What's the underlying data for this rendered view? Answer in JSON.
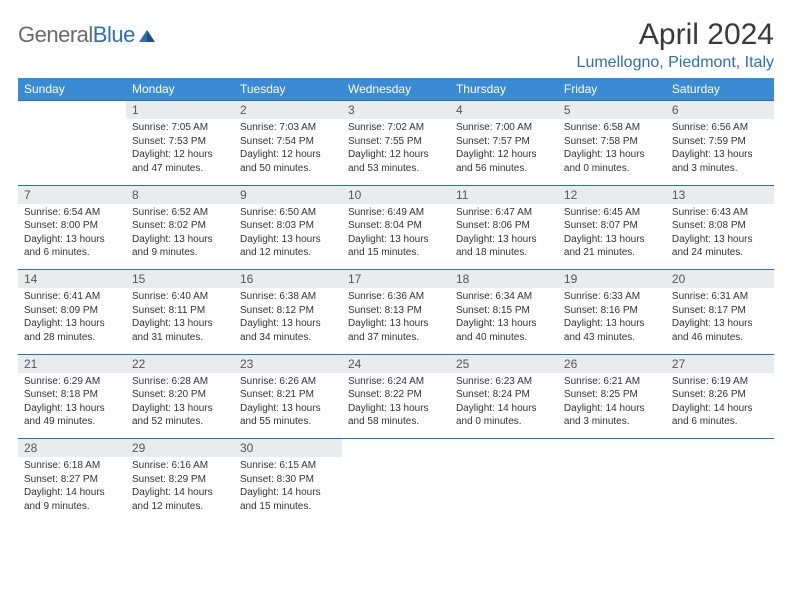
{
  "brand": {
    "name_prefix": "General",
    "name_suffix": "Blue"
  },
  "title": "April 2024",
  "location": "Lumellogno, Piedmont, Italy",
  "colors": {
    "header_bg": "#3b8bd4",
    "accent": "#2b6fb5",
    "date_row_bg": "#e9eced",
    "text": "#333333",
    "logo_gray": "#6b6b6b"
  },
  "typography": {
    "title_fontsize": 30,
    "location_fontsize": 16,
    "dow_fontsize": 12,
    "cell_fontsize": 10
  },
  "days_of_week": [
    "Sunday",
    "Monday",
    "Tuesday",
    "Wednesday",
    "Thursday",
    "Friday",
    "Saturday"
  ],
  "weeks": [
    {
      "dates": [
        "",
        "1",
        "2",
        "3",
        "4",
        "5",
        "6"
      ],
      "cells": [
        null,
        {
          "sunrise": "Sunrise: 7:05 AM",
          "sunset": "Sunset: 7:53 PM",
          "day1": "Daylight: 12 hours",
          "day2": "and 47 minutes."
        },
        {
          "sunrise": "Sunrise: 7:03 AM",
          "sunset": "Sunset: 7:54 PM",
          "day1": "Daylight: 12 hours",
          "day2": "and 50 minutes."
        },
        {
          "sunrise": "Sunrise: 7:02 AM",
          "sunset": "Sunset: 7:55 PM",
          "day1": "Daylight: 12 hours",
          "day2": "and 53 minutes."
        },
        {
          "sunrise": "Sunrise: 7:00 AM",
          "sunset": "Sunset: 7:57 PM",
          "day1": "Daylight: 12 hours",
          "day2": "and 56 minutes."
        },
        {
          "sunrise": "Sunrise: 6:58 AM",
          "sunset": "Sunset: 7:58 PM",
          "day1": "Daylight: 13 hours",
          "day2": "and 0 minutes."
        },
        {
          "sunrise": "Sunrise: 6:56 AM",
          "sunset": "Sunset: 7:59 PM",
          "day1": "Daylight: 13 hours",
          "day2": "and 3 minutes."
        }
      ]
    },
    {
      "dates": [
        "7",
        "8",
        "9",
        "10",
        "11",
        "12",
        "13"
      ],
      "cells": [
        {
          "sunrise": "Sunrise: 6:54 AM",
          "sunset": "Sunset: 8:00 PM",
          "day1": "Daylight: 13 hours",
          "day2": "and 6 minutes."
        },
        {
          "sunrise": "Sunrise: 6:52 AM",
          "sunset": "Sunset: 8:02 PM",
          "day1": "Daylight: 13 hours",
          "day2": "and 9 minutes."
        },
        {
          "sunrise": "Sunrise: 6:50 AM",
          "sunset": "Sunset: 8:03 PM",
          "day1": "Daylight: 13 hours",
          "day2": "and 12 minutes."
        },
        {
          "sunrise": "Sunrise: 6:49 AM",
          "sunset": "Sunset: 8:04 PM",
          "day1": "Daylight: 13 hours",
          "day2": "and 15 minutes."
        },
        {
          "sunrise": "Sunrise: 6:47 AM",
          "sunset": "Sunset: 8:06 PM",
          "day1": "Daylight: 13 hours",
          "day2": "and 18 minutes."
        },
        {
          "sunrise": "Sunrise: 6:45 AM",
          "sunset": "Sunset: 8:07 PM",
          "day1": "Daylight: 13 hours",
          "day2": "and 21 minutes."
        },
        {
          "sunrise": "Sunrise: 6:43 AM",
          "sunset": "Sunset: 8:08 PM",
          "day1": "Daylight: 13 hours",
          "day2": "and 24 minutes."
        }
      ]
    },
    {
      "dates": [
        "14",
        "15",
        "16",
        "17",
        "18",
        "19",
        "20"
      ],
      "cells": [
        {
          "sunrise": "Sunrise: 6:41 AM",
          "sunset": "Sunset: 8:09 PM",
          "day1": "Daylight: 13 hours",
          "day2": "and 28 minutes."
        },
        {
          "sunrise": "Sunrise: 6:40 AM",
          "sunset": "Sunset: 8:11 PM",
          "day1": "Daylight: 13 hours",
          "day2": "and 31 minutes."
        },
        {
          "sunrise": "Sunrise: 6:38 AM",
          "sunset": "Sunset: 8:12 PM",
          "day1": "Daylight: 13 hours",
          "day2": "and 34 minutes."
        },
        {
          "sunrise": "Sunrise: 6:36 AM",
          "sunset": "Sunset: 8:13 PM",
          "day1": "Daylight: 13 hours",
          "day2": "and 37 minutes."
        },
        {
          "sunrise": "Sunrise: 6:34 AM",
          "sunset": "Sunset: 8:15 PM",
          "day1": "Daylight: 13 hours",
          "day2": "and 40 minutes."
        },
        {
          "sunrise": "Sunrise: 6:33 AM",
          "sunset": "Sunset: 8:16 PM",
          "day1": "Daylight: 13 hours",
          "day2": "and 43 minutes."
        },
        {
          "sunrise": "Sunrise: 6:31 AM",
          "sunset": "Sunset: 8:17 PM",
          "day1": "Daylight: 13 hours",
          "day2": "and 46 minutes."
        }
      ]
    },
    {
      "dates": [
        "21",
        "22",
        "23",
        "24",
        "25",
        "26",
        "27"
      ],
      "cells": [
        {
          "sunrise": "Sunrise: 6:29 AM",
          "sunset": "Sunset: 8:18 PM",
          "day1": "Daylight: 13 hours",
          "day2": "and 49 minutes."
        },
        {
          "sunrise": "Sunrise: 6:28 AM",
          "sunset": "Sunset: 8:20 PM",
          "day1": "Daylight: 13 hours",
          "day2": "and 52 minutes."
        },
        {
          "sunrise": "Sunrise: 6:26 AM",
          "sunset": "Sunset: 8:21 PM",
          "day1": "Daylight: 13 hours",
          "day2": "and 55 minutes."
        },
        {
          "sunrise": "Sunrise: 6:24 AM",
          "sunset": "Sunset: 8:22 PM",
          "day1": "Daylight: 13 hours",
          "day2": "and 58 minutes."
        },
        {
          "sunrise": "Sunrise: 6:23 AM",
          "sunset": "Sunset: 8:24 PM",
          "day1": "Daylight: 14 hours",
          "day2": "and 0 minutes."
        },
        {
          "sunrise": "Sunrise: 6:21 AM",
          "sunset": "Sunset: 8:25 PM",
          "day1": "Daylight: 14 hours",
          "day2": "and 3 minutes."
        },
        {
          "sunrise": "Sunrise: 6:19 AM",
          "sunset": "Sunset: 8:26 PM",
          "day1": "Daylight: 14 hours",
          "day2": "and 6 minutes."
        }
      ]
    },
    {
      "dates": [
        "28",
        "29",
        "30",
        "",
        "",
        "",
        ""
      ],
      "cells": [
        {
          "sunrise": "Sunrise: 6:18 AM",
          "sunset": "Sunset: 8:27 PM",
          "day1": "Daylight: 14 hours",
          "day2": "and 9 minutes."
        },
        {
          "sunrise": "Sunrise: 6:16 AM",
          "sunset": "Sunset: 8:29 PM",
          "day1": "Daylight: 14 hours",
          "day2": "and 12 minutes."
        },
        {
          "sunrise": "Sunrise: 6:15 AM",
          "sunset": "Sunset: 8:30 PM",
          "day1": "Daylight: 14 hours",
          "day2": "and 15 minutes."
        },
        null,
        null,
        null,
        null
      ]
    }
  ]
}
